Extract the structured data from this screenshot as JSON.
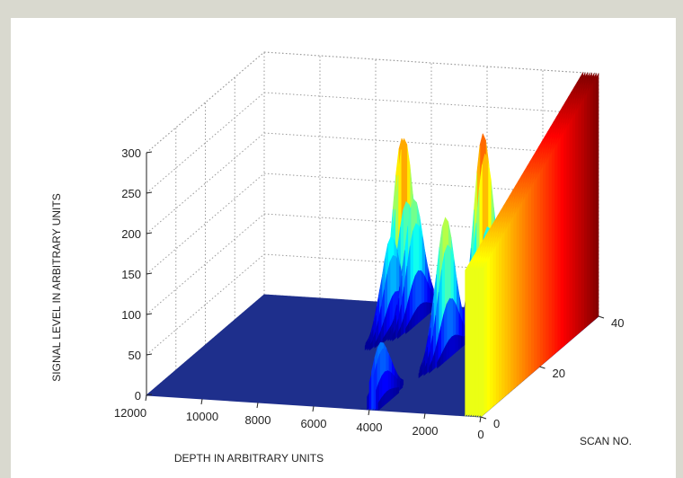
{
  "chart_data": {
    "type": "surface3d",
    "zlabel": "SIGNAL LEVEL IN ARBITRARY UNITS",
    "xlabel": "DEPTH IN ARBITRARY UNITS",
    "ylabel": "SCAN NO.",
    "xlim": [
      0,
      12000
    ],
    "ylim": [
      0,
      40
    ],
    "zlim": [
      0,
      300
    ],
    "x_ticks": [
      12000,
      10000,
      8000,
      6000,
      4000,
      2000,
      0
    ],
    "y_ticks": [
      0,
      20,
      40
    ],
    "z_ticks": [
      0,
      50,
      100,
      150,
      200,
      250,
      300
    ],
    "grid": true,
    "colormap": "jet",
    "baseline_level": 5,
    "peaks": [
      {
        "depth": 6600,
        "scan": 36,
        "level": 230
      },
      {
        "depth": 6400,
        "scan": 30,
        "level": 115
      },
      {
        "depth": 6000,
        "scan": 34,
        "level": 150
      },
      {
        "depth": 3500,
        "scan": 34,
        "level": 240
      },
      {
        "depth": 3600,
        "scan": 22,
        "level": 170
      },
      {
        "depth": 3900,
        "scan": 3,
        "level": 75
      }
    ],
    "wall": {
      "depth_range": [
        0,
        600
      ],
      "scan_range": [
        0,
        40
      ],
      "level_at_scan_0": 180,
      "level_at_scan_40": 300
    }
  }
}
